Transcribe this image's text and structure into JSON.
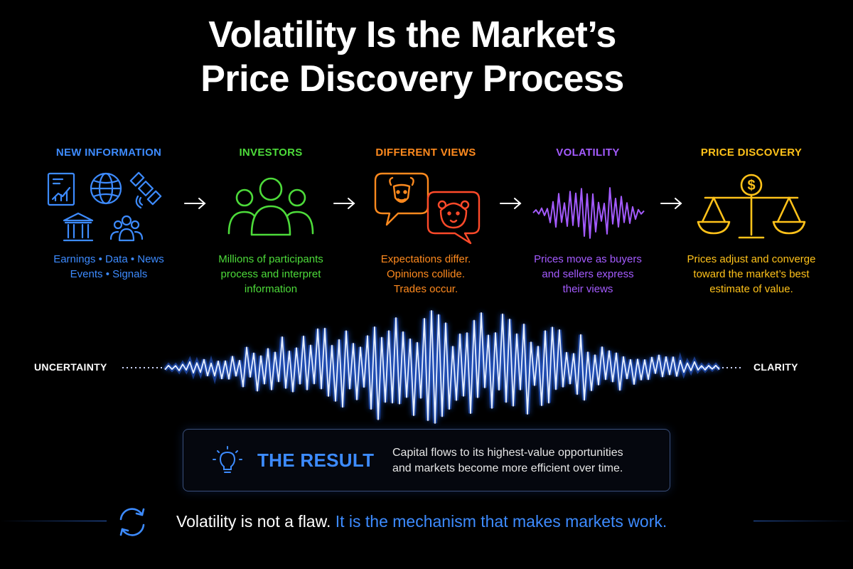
{
  "title": {
    "line1": "Volatility Is the Market’s",
    "line2": "Price Discovery Process"
  },
  "steps": [
    {
      "heading": "NEW INFORMATION",
      "color": "#3d8bff",
      "icon": "information-sources-icon",
      "desc_lines": [
        "Earnings • Data • News",
        "Events • Signals"
      ]
    },
    {
      "heading": "INVESTORS",
      "color": "#4ddb3a",
      "icon": "people-group-icon",
      "desc_lines": [
        "Millions of participants",
        "process and interpret",
        "information"
      ]
    },
    {
      "heading": "DIFFERENT VIEWS",
      "color": "#ff8a1e",
      "icon": "bull-bear-speech-icon",
      "desc_lines": [
        "Expectations differ.",
        "Opinions collide.",
        "Trades occur."
      ]
    },
    {
      "heading": "VOLATILITY",
      "color": "#a45bff",
      "icon": "volatility-wave-icon",
      "desc_lines": [
        "Prices move as buyers",
        "and sellers express",
        "their views"
      ]
    },
    {
      "heading": "PRICE DISCOVERY",
      "color": "#ffc21a",
      "icon": "balance-scale-icon",
      "desc_lines": [
        "Prices adjust and converge",
        "toward the market’s best",
        "estimate of value."
      ]
    }
  ],
  "wave": {
    "left_label": "UNCERTAINTY",
    "right_label": "CLARITY",
    "color": "#4f9cff"
  },
  "result": {
    "icon": "lightbulb-icon",
    "title": "THE RESULT",
    "text_lines": [
      "Capital flows to its highest-value opportunities",
      "and markets become more efficient over time."
    ]
  },
  "footer": {
    "icon": "cycle-arrows-icon",
    "text_a": "Volatility is not a flaw.",
    "text_b": "It is the mechanism that makes markets work."
  }
}
